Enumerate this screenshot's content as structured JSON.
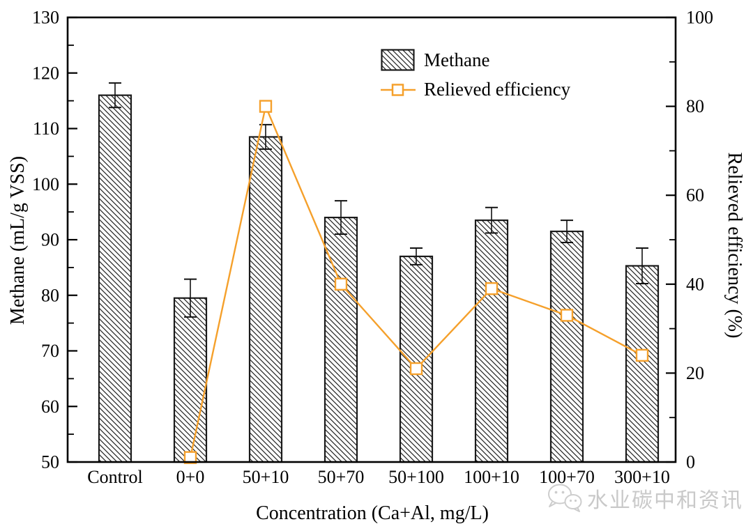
{
  "chart_data": {
    "type": "bar",
    "title": "",
    "categories": [
      "Control",
      "0+0",
      "50+10",
      "50+70",
      "50+100",
      "100+10",
      "100+70",
      "300+10"
    ],
    "series": [
      {
        "name": "Methane",
        "type": "bar",
        "axis": "left",
        "values": [
          116,
          79.5,
          108.5,
          94,
          87,
          93.5,
          91.5,
          85.3
        ],
        "errors": [
          2.2,
          3.4,
          2.2,
          3,
          1.5,
          2.3,
          2,
          3.2
        ]
      },
      {
        "name": "Relieved efficiency",
        "type": "line",
        "axis": "right",
        "marker": "open-square",
        "values": [
          null,
          1,
          80,
          40,
          21,
          39,
          33,
          24
        ]
      }
    ],
    "xlabel": "Concentration (Ca+Al, mg/L)",
    "ylabel_left": "Methane (mL/g VSS)",
    "ylabel_right": "Relieved efficiency (%)",
    "ylim_left": [
      50,
      130
    ],
    "yticks_left": [
      50,
      60,
      70,
      80,
      90,
      100,
      110,
      120,
      130
    ],
    "ytick_left_minor": 5,
    "ylim_right": [
      0,
      100
    ],
    "yticks_right": [
      0,
      20,
      40,
      60,
      80,
      100
    ],
    "ytick_right_minor": 10,
    "grid": false,
    "legend_position": "top-center",
    "colors": {
      "bar_edge": "#1a1a1a",
      "bar_hatch": "#2a2a2a",
      "line": "#f5a02b",
      "axis": "#000000"
    }
  },
  "watermark": {
    "text": "水业碳中和资讯",
    "icon": "wechat-logo",
    "color": "#c9c9c9"
  }
}
